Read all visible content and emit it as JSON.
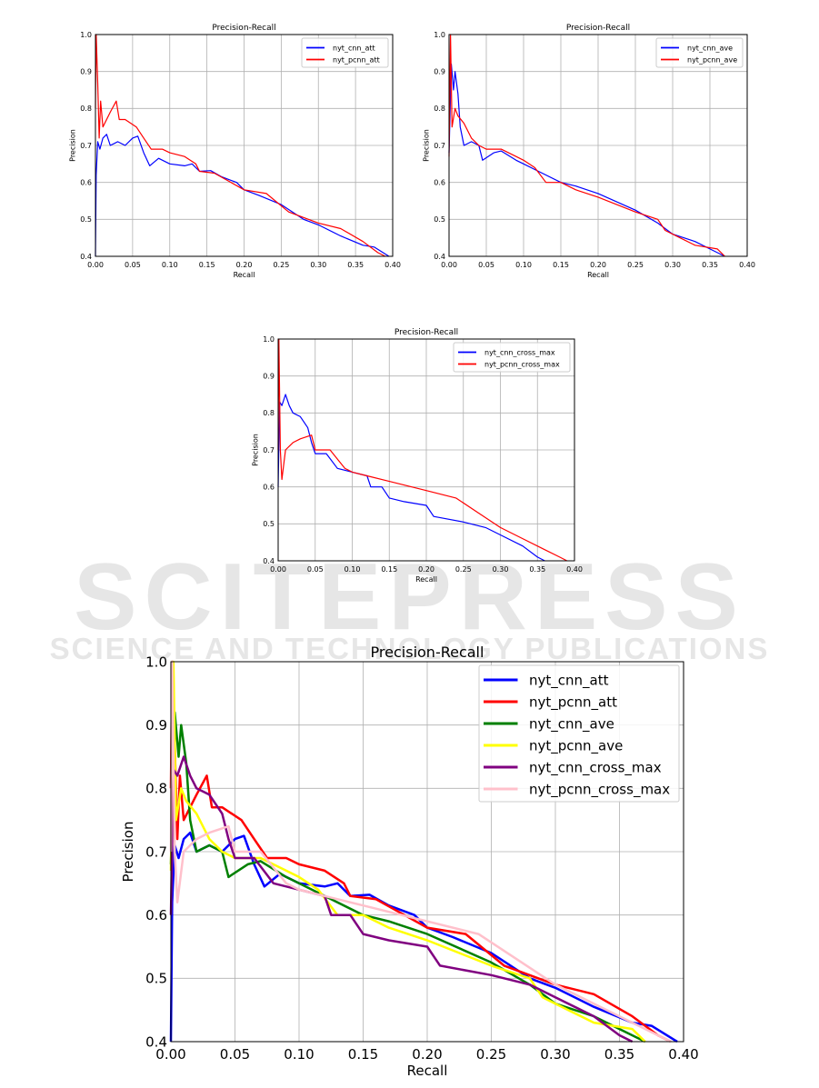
{
  "watermark": {
    "main": "SCITEPRESS",
    "sub": "SCIENCE AND TECHNOLOGY PUBLICATIONS"
  },
  "series_defs": {
    "nyt_cnn_att": {
      "color": "#0000ff",
      "points": [
        [
          0,
          0.4
        ],
        [
          0.001,
          0.62
        ],
        [
          0.003,
          0.71
        ],
        [
          0.006,
          0.69
        ],
        [
          0.01,
          0.72
        ],
        [
          0.015,
          0.73
        ],
        [
          0.02,
          0.7
        ],
        [
          0.03,
          0.71
        ],
        [
          0.04,
          0.7
        ],
        [
          0.05,
          0.72
        ],
        [
          0.057,
          0.725
        ],
        [
          0.065,
          0.68
        ],
        [
          0.073,
          0.645
        ],
        [
          0.085,
          0.665
        ],
        [
          0.1,
          0.65
        ],
        [
          0.12,
          0.645
        ],
        [
          0.13,
          0.65
        ],
        [
          0.14,
          0.63
        ],
        [
          0.155,
          0.632
        ],
        [
          0.17,
          0.615
        ],
        [
          0.19,
          0.6
        ],
        [
          0.2,
          0.58
        ],
        [
          0.22,
          0.565
        ],
        [
          0.25,
          0.54
        ],
        [
          0.28,
          0.5
        ],
        [
          0.3,
          0.485
        ],
        [
          0.33,
          0.455
        ],
        [
          0.36,
          0.43
        ],
        [
          0.375,
          0.425
        ],
        [
          0.395,
          0.4
        ]
      ]
    },
    "nyt_pcnn_att": {
      "color": "#ff0000",
      "points": [
        [
          0,
          0.8
        ],
        [
          0.001,
          1.0
        ],
        [
          0.003,
          0.87
        ],
        [
          0.005,
          0.72
        ],
        [
          0.007,
          0.82
        ],
        [
          0.01,
          0.75
        ],
        [
          0.02,
          0.79
        ],
        [
          0.028,
          0.82
        ],
        [
          0.032,
          0.77
        ],
        [
          0.04,
          0.77
        ],
        [
          0.055,
          0.75
        ],
        [
          0.065,
          0.72
        ],
        [
          0.075,
          0.69
        ],
        [
          0.09,
          0.69
        ],
        [
          0.1,
          0.68
        ],
        [
          0.12,
          0.67
        ],
        [
          0.135,
          0.65
        ],
        [
          0.14,
          0.63
        ],
        [
          0.16,
          0.625
        ],
        [
          0.2,
          0.58
        ],
        [
          0.23,
          0.57
        ],
        [
          0.26,
          0.52
        ],
        [
          0.3,
          0.49
        ],
        [
          0.33,
          0.475
        ],
        [
          0.36,
          0.44
        ],
        [
          0.38,
          0.41
        ],
        [
          0.39,
          0.4
        ]
      ]
    },
    "nyt_cnn_ave": {
      "color": "#008000",
      "points": [
        [
          0,
          0.68
        ],
        [
          0.003,
          0.92
        ],
        [
          0.006,
          0.85
        ],
        [
          0.008,
          0.9
        ],
        [
          0.012,
          0.84
        ],
        [
          0.015,
          0.75
        ],
        [
          0.02,
          0.7
        ],
        [
          0.03,
          0.71
        ],
        [
          0.04,
          0.7
        ],
        [
          0.045,
          0.66
        ],
        [
          0.06,
          0.68
        ],
        [
          0.07,
          0.685
        ],
        [
          0.09,
          0.66
        ],
        [
          0.1,
          0.65
        ],
        [
          0.12,
          0.63
        ],
        [
          0.15,
          0.6
        ],
        [
          0.17,
          0.59
        ],
        [
          0.2,
          0.57
        ],
        [
          0.25,
          0.525
        ],
        [
          0.28,
          0.49
        ],
        [
          0.3,
          0.46
        ],
        [
          0.33,
          0.44
        ],
        [
          0.35,
          0.42
        ],
        [
          0.37,
          0.4
        ]
      ]
    },
    "nyt_pcnn_ave": {
      "color": "#ffff00",
      "points": [
        [
          0,
          0.67
        ],
        [
          0.002,
          1.0
        ],
        [
          0.004,
          0.75
        ],
        [
          0.008,
          0.8
        ],
        [
          0.012,
          0.78
        ],
        [
          0.02,
          0.76
        ],
        [
          0.03,
          0.72
        ],
        [
          0.04,
          0.7
        ],
        [
          0.05,
          0.69
        ],
        [
          0.07,
          0.69
        ],
        [
          0.09,
          0.67
        ],
        [
          0.1,
          0.66
        ],
        [
          0.115,
          0.64
        ],
        [
          0.13,
          0.6
        ],
        [
          0.15,
          0.6
        ],
        [
          0.17,
          0.58
        ],
        [
          0.2,
          0.56
        ],
        [
          0.25,
          0.52
        ],
        [
          0.28,
          0.5
        ],
        [
          0.29,
          0.47
        ],
        [
          0.31,
          0.45
        ],
        [
          0.33,
          0.43
        ],
        [
          0.36,
          0.42
        ],
        [
          0.37,
          0.4
        ]
      ]
    },
    "nyt_cnn_cross_max": {
      "color": "#800080",
      "points": [
        [
          0,
          0.6
        ],
        [
          0.002,
          0.83
        ],
        [
          0.005,
          0.82
        ],
        [
          0.01,
          0.85
        ],
        [
          0.015,
          0.82
        ],
        [
          0.02,
          0.8
        ],
        [
          0.03,
          0.79
        ],
        [
          0.04,
          0.76
        ],
        [
          0.045,
          0.72
        ],
        [
          0.05,
          0.69
        ],
        [
          0.065,
          0.69
        ],
        [
          0.08,
          0.65
        ],
        [
          0.1,
          0.64
        ],
        [
          0.12,
          0.63
        ],
        [
          0.125,
          0.6
        ],
        [
          0.14,
          0.6
        ],
        [
          0.15,
          0.57
        ],
        [
          0.17,
          0.56
        ],
        [
          0.2,
          0.55
        ],
        [
          0.21,
          0.52
        ],
        [
          0.25,
          0.505
        ],
        [
          0.28,
          0.49
        ],
        [
          0.3,
          0.47
        ],
        [
          0.33,
          0.44
        ],
        [
          0.35,
          0.41
        ],
        [
          0.36,
          0.4
        ]
      ]
    },
    "nyt_pcnn_cross_max": {
      "color": "#ffc0cb",
      "points": [
        [
          0,
          0.7
        ],
        [
          0.001,
          1.0
        ],
        [
          0.003,
          0.7
        ],
        [
          0.005,
          0.62
        ],
        [
          0.01,
          0.7
        ],
        [
          0.02,
          0.72
        ],
        [
          0.03,
          0.73
        ],
        [
          0.045,
          0.74
        ],
        [
          0.05,
          0.7
        ],
        [
          0.07,
          0.7
        ],
        [
          0.09,
          0.65
        ],
        [
          0.1,
          0.64
        ],
        [
          0.12,
          0.63
        ],
        [
          0.15,
          0.615
        ],
        [
          0.2,
          0.59
        ],
        [
          0.24,
          0.57
        ],
        [
          0.27,
          0.53
        ],
        [
          0.3,
          0.49
        ],
        [
          0.33,
          0.46
        ],
        [
          0.36,
          0.43
        ],
        [
          0.38,
          0.41
        ],
        [
          0.39,
          0.4
        ]
      ]
    }
  },
  "chart_data": [
    {
      "type": "line",
      "title": "Precision-Recall",
      "xlabel": "Recall",
      "ylabel": "Precision",
      "xlim": [
        0,
        0.4
      ],
      "ylim": [
        0.4,
        1.0
      ],
      "grid": true,
      "legend": "top-right",
      "xticks": [
        "0.00",
        "0.05",
        "0.10",
        "0.15",
        "0.20",
        "0.25",
        "0.30",
        "0.35",
        "0.40"
      ],
      "yticks": [
        "0.4",
        "0.5",
        "0.6",
        "0.7",
        "0.8",
        "0.9",
        "1.0"
      ],
      "series": [
        "nyt_cnn_att",
        "nyt_pcnn_att"
      ]
    },
    {
      "type": "line",
      "title": "Precision-Recall",
      "xlabel": "Recall",
      "ylabel": "Precision",
      "xlim": [
        0,
        0.4
      ],
      "ylim": [
        0.4,
        1.0
      ],
      "grid": true,
      "legend": "top-right",
      "xticks": [
        "0.00",
        "0.05",
        "0.10",
        "0.15",
        "0.20",
        "0.25",
        "0.30",
        "0.35",
        "0.40"
      ],
      "yticks": [
        "0.4",
        "0.5",
        "0.6",
        "0.7",
        "0.8",
        "0.9",
        "1.0"
      ],
      "series": [
        "nyt_cnn_ave",
        "nyt_pcnn_ave"
      ],
      "colors_override": [
        "#0000ff",
        "#ff0000"
      ]
    },
    {
      "type": "line",
      "title": "Precision-Recall",
      "xlabel": "Recall",
      "ylabel": "Precision",
      "xlim": [
        0,
        0.4
      ],
      "ylim": [
        0.4,
        1.0
      ],
      "grid": true,
      "legend": "top-right",
      "xticks": [
        "0.00",
        "0.05",
        "0.10",
        "0.15",
        "0.20",
        "0.25",
        "0.30",
        "0.35",
        "0.40"
      ],
      "yticks": [
        "0.4",
        "0.5",
        "0.6",
        "0.7",
        "0.8",
        "0.9",
        "1.0"
      ],
      "series": [
        "nyt_cnn_cross_max",
        "nyt_pcnn_cross_max"
      ],
      "colors_override": [
        "#0000ff",
        "#ff0000"
      ]
    },
    {
      "type": "line",
      "title": "Precision-Recall",
      "xlabel": "Recall",
      "ylabel": "Precision",
      "xlim": [
        0,
        0.4
      ],
      "ylim": [
        0.4,
        1.0
      ],
      "grid": true,
      "legend": "top-right",
      "xticks": [
        "0.00",
        "0.05",
        "0.10",
        "0.15",
        "0.20",
        "0.25",
        "0.30",
        "0.35",
        "0.40"
      ],
      "yticks": [
        "0.4",
        "0.5",
        "0.6",
        "0.7",
        "0.8",
        "0.9",
        "1.0"
      ],
      "series": [
        "nyt_cnn_att",
        "nyt_pcnn_att",
        "nyt_cnn_ave",
        "nyt_pcnn_ave",
        "nyt_cnn_cross_max",
        "nyt_pcnn_cross_max"
      ]
    }
  ]
}
